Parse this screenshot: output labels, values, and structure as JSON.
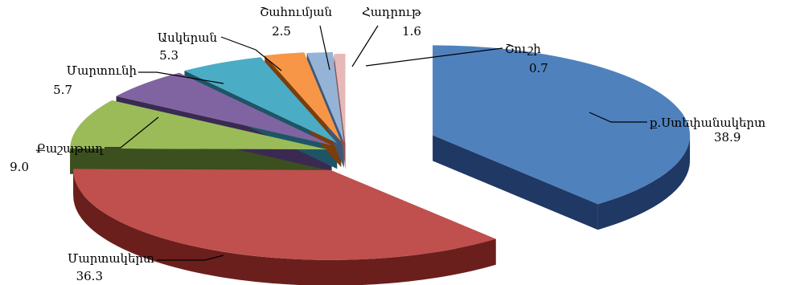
{
  "chart_data": {
    "type": "pie",
    "style": "3d-exploded",
    "title": "",
    "slices": [
      {
        "name": "ք.Ստեփանակերտ",
        "value": 38.9,
        "value_label": "38.9",
        "color": "#4f81bd",
        "side_color": "#1f3864"
      },
      {
        "name": "Մարտակերտ",
        "value": 36.3,
        "value_label": "36.3",
        "color": "#c0504d",
        "side_color": "#6b1f1c"
      },
      {
        "name": "Քաշաթաղ",
        "value": 9.0,
        "value_label": "9.0",
        "color": "#9bbb59",
        "side_color": "#3c4f1e"
      },
      {
        "name": "Մարտունի",
        "value": 5.7,
        "value_label": "5.7",
        "color": "#8064a2",
        "side_color": "#3a2a52"
      },
      {
        "name": "Ասկերան",
        "value": 5.3,
        "value_label": "5.3",
        "color": "#4bacc6",
        "side_color": "#1d5566"
      },
      {
        "name": "Շահումյան",
        "value": 2.5,
        "value_label": "2.5",
        "color": "#f79646",
        "side_color": "#7a3e0c"
      },
      {
        "name": "Հադրութ",
        "value": 1.6,
        "value_label": "1.6",
        "color": "#95b3d7",
        "side_color": "#3f5878"
      },
      {
        "name": "Շուշի",
        "value": 0.7,
        "value_label": "0.7",
        "color": "#e6b9b8",
        "side_color": "#8a5453"
      }
    ]
  }
}
